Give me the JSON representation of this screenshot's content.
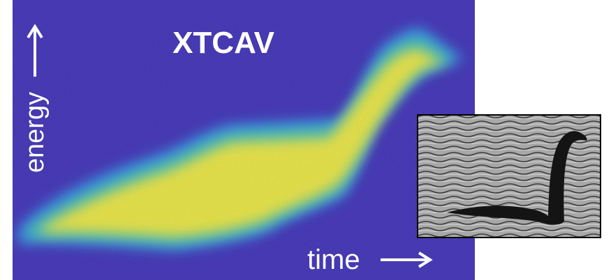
{
  "title": "XTCAV",
  "y_label": "energy",
  "x_label": "time"
}
